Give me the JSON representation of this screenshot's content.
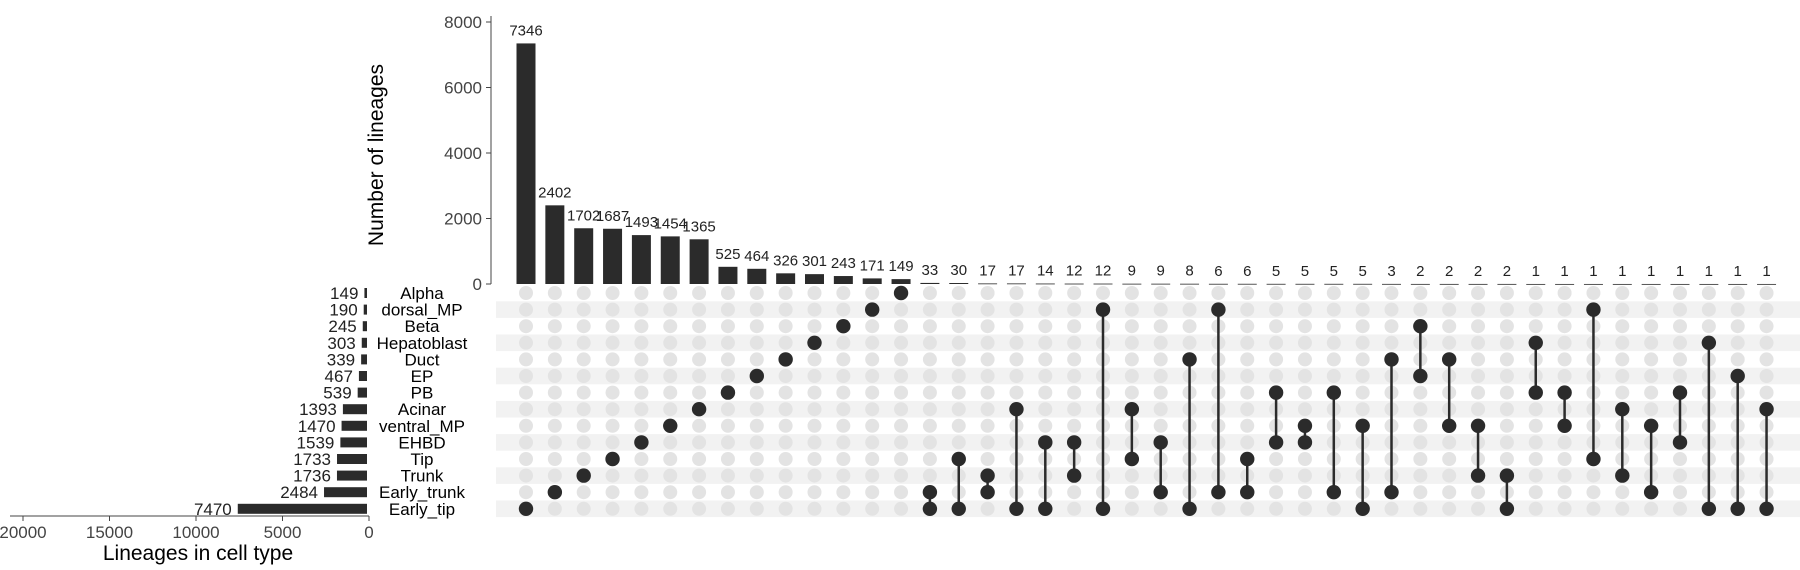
{
  "chart_data": {
    "type": "bar",
    "ylabel": "Number of lineages",
    "xlabel_sets": "Lineages in cell type",
    "ylim": [
      0,
      8000
    ],
    "yticks": [
      0,
      2000,
      4000,
      6000,
      8000
    ],
    "set_size_ticks": [
      20000,
      15000,
      10000,
      5000,
      0
    ],
    "bar_color": "#2b2b2b",
    "dot_active_color": "#2b2b2b",
    "dot_inactive_color": "#e3e3e3",
    "stripe_color": "#f2f2f2",
    "sets": [
      {
        "name": "Alpha",
        "size": 149
      },
      {
        "name": "dorsal_MP",
        "size": 190
      },
      {
        "name": "Beta",
        "size": 245
      },
      {
        "name": "Hepatoblast",
        "size": 303
      },
      {
        "name": "Duct",
        "size": 339
      },
      {
        "name": "EP",
        "size": 467
      },
      {
        "name": "PB",
        "size": 539
      },
      {
        "name": "Acinar",
        "size": 1393
      },
      {
        "name": "ventral_MP",
        "size": 1470
      },
      {
        "name": "EHBD",
        "size": 1539
      },
      {
        "name": "Tip",
        "size": 1733
      },
      {
        "name": "Trunk",
        "size": 1736
      },
      {
        "name": "Early_trunk",
        "size": 2484
      },
      {
        "name": "Early_tip",
        "size": 7470
      }
    ],
    "intersections": [
      {
        "value": 7346,
        "sets": [
          "Early_tip"
        ]
      },
      {
        "value": 2402,
        "sets": [
          "Early_trunk"
        ]
      },
      {
        "value": 1702,
        "sets": [
          "Trunk"
        ]
      },
      {
        "value": 1687,
        "sets": [
          "Tip"
        ]
      },
      {
        "value": 1493,
        "sets": [
          "EHBD"
        ]
      },
      {
        "value": 1454,
        "sets": [
          "ventral_MP"
        ]
      },
      {
        "value": 1365,
        "sets": [
          "Acinar"
        ]
      },
      {
        "value": 525,
        "sets": [
          "PB"
        ]
      },
      {
        "value": 464,
        "sets": [
          "EP"
        ]
      },
      {
        "value": 326,
        "sets": [
          "Duct"
        ]
      },
      {
        "value": 301,
        "sets": [
          "Hepatoblast"
        ]
      },
      {
        "value": 243,
        "sets": [
          "Beta"
        ]
      },
      {
        "value": 171,
        "sets": [
          "dorsal_MP"
        ]
      },
      {
        "value": 149,
        "sets": [
          "Alpha"
        ]
      },
      {
        "value": 33,
        "sets": [
          "Early_trunk",
          "Early_tip"
        ]
      },
      {
        "value": 30,
        "sets": [
          "Tip",
          "Early_tip"
        ]
      },
      {
        "value": 17,
        "sets": [
          "Trunk",
          "Early_trunk"
        ]
      },
      {
        "value": 17,
        "sets": [
          "Acinar",
          "Early_tip"
        ]
      },
      {
        "value": 14,
        "sets": [
          "EHBD",
          "Early_tip"
        ]
      },
      {
        "value": 12,
        "sets": [
          "EHBD",
          "Trunk"
        ]
      },
      {
        "value": 12,
        "sets": [
          "dorsal_MP",
          "Early_tip"
        ]
      },
      {
        "value": 9,
        "sets": [
          "Acinar",
          "Tip"
        ]
      },
      {
        "value": 9,
        "sets": [
          "EHBD",
          "Early_trunk"
        ]
      },
      {
        "value": 8,
        "sets": [
          "Duct",
          "Early_tip"
        ]
      },
      {
        "value": 6,
        "sets": [
          "dorsal_MP",
          "Early_trunk"
        ]
      },
      {
        "value": 6,
        "sets": [
          "Tip",
          "Early_trunk"
        ]
      },
      {
        "value": 5,
        "sets": [
          "PB",
          "EHBD"
        ]
      },
      {
        "value": 5,
        "sets": [
          "ventral_MP",
          "EHBD"
        ]
      },
      {
        "value": 5,
        "sets": [
          "PB",
          "Early_trunk"
        ]
      },
      {
        "value": 5,
        "sets": [
          "ventral_MP",
          "Early_tip"
        ]
      },
      {
        "value": 3,
        "sets": [
          "Duct",
          "Early_trunk"
        ]
      },
      {
        "value": 2,
        "sets": [
          "Beta",
          "EP"
        ]
      },
      {
        "value": 2,
        "sets": [
          "Duct",
          "ventral_MP"
        ]
      },
      {
        "value": 2,
        "sets": [
          "ventral_MP",
          "Trunk"
        ]
      },
      {
        "value": 2,
        "sets": [
          "Trunk",
          "Early_tip"
        ]
      },
      {
        "value": 1,
        "sets": [
          "Hepatoblast",
          "PB"
        ]
      },
      {
        "value": 1,
        "sets": [
          "PB",
          "ventral_MP"
        ]
      },
      {
        "value": 1,
        "sets": [
          "dorsal_MP",
          "Tip"
        ]
      },
      {
        "value": 1,
        "sets": [
          "Acinar",
          "Trunk"
        ]
      },
      {
        "value": 1,
        "sets": [
          "ventral_MP",
          "Early_trunk"
        ]
      },
      {
        "value": 1,
        "sets": [
          "PB",
          "EHBD"
        ]
      },
      {
        "value": 1,
        "sets": [
          "Hepatoblast",
          "Early_tip"
        ]
      },
      {
        "value": 1,
        "sets": [
          "EP",
          "Early_tip"
        ]
      },
      {
        "value": 1,
        "sets": [
          "Acinar",
          "Early_tip"
        ]
      }
    ]
  }
}
